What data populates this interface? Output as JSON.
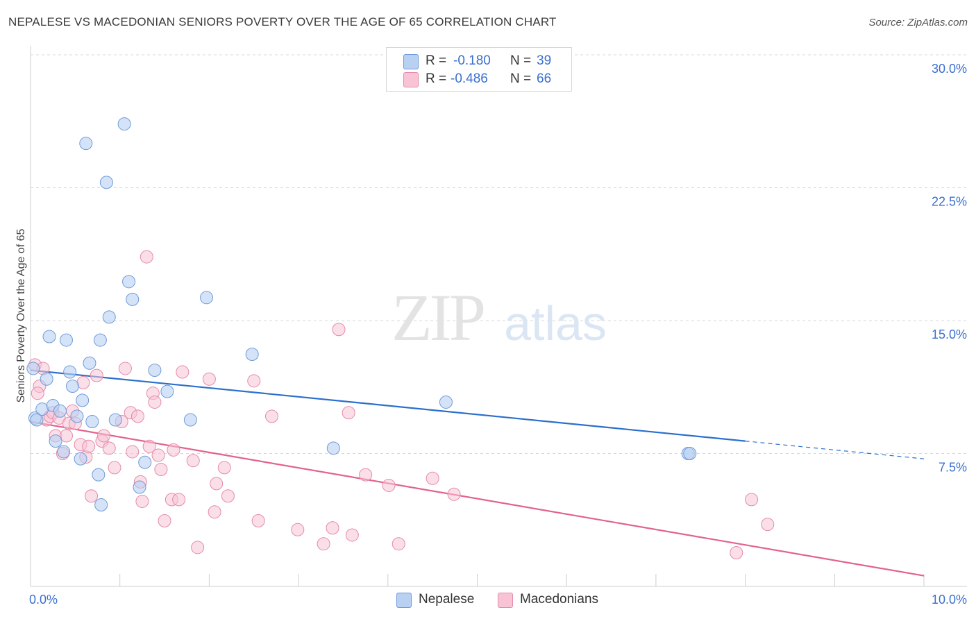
{
  "header": {
    "title": "NEPALESE VS MACEDONIAN SENIORS POVERTY OVER THE AGE OF 65 CORRELATION CHART",
    "source": "Source: ZipAtlas.com"
  },
  "watermark": {
    "zip": "ZIP",
    "atlas": "atlas"
  },
  "legend_top": [
    {
      "r_label": "R =",
      "r_value": "-0.180",
      "n_label": "N =",
      "n_value": "39"
    },
    {
      "r_label": "R =",
      "r_value": "-0.486",
      "n_label": "N =",
      "n_value": "66"
    }
  ],
  "legend_bottom": [
    {
      "label": "Nepalese"
    },
    {
      "label": "Macedonians"
    }
  ],
  "colors": {
    "nepalese_fill": "#b8d0f2",
    "nepalese_stroke": "#6f9ad8",
    "nepalese_line": "#2a6fcc",
    "macedonian_fill": "#f8c4d5",
    "macedonian_stroke": "#e58aa8",
    "macedonian_line": "#e2628e",
    "tick_label": "#3b6fcf",
    "grid": "#d9d9d9"
  },
  "chart_data": {
    "type": "scatter",
    "title": "NEPALESE VS MACEDONIAN SENIORS POVERTY OVER THE AGE OF 65 CORRELATION CHART",
    "xlabel": "",
    "ylabel": "Seniors Poverty Over the Age of 65",
    "xlim": [
      0,
      10
    ],
    "ylim": [
      0,
      30
    ],
    "x_tick_labels": [
      "0.0%",
      "10.0%"
    ],
    "y_ticks": [
      7.5,
      15.0,
      22.5,
      30.0
    ],
    "y_tick_labels": [
      "7.5%",
      "15.0%",
      "22.5%",
      "30.0%"
    ],
    "grid": true,
    "legend_position": "top-center and bottom",
    "series": [
      {
        "name": "Nepalese",
        "r": -0.18,
        "n": 39,
        "trend": {
          "x": [
            0.0,
            8.0
          ],
          "y": [
            12.2,
            8.2
          ],
          "dashed_extension": {
            "x": [
              8.0,
              10.0
            ],
            "y": [
              8.2,
              7.2
            ]
          }
        },
        "points": [
          [
            0.03,
            12.3
          ],
          [
            0.05,
            9.5
          ],
          [
            0.07,
            9.4
          ],
          [
            0.13,
            10.0
          ],
          [
            0.18,
            11.7
          ],
          [
            0.21,
            14.1
          ],
          [
            0.25,
            10.2
          ],
          [
            0.28,
            8.2
          ],
          [
            0.33,
            9.9
          ],
          [
            0.37,
            7.6
          ],
          [
            0.4,
            13.9
          ],
          [
            0.44,
            12.1
          ],
          [
            0.47,
            11.3
          ],
          [
            0.52,
            9.6
          ],
          [
            0.56,
            7.2
          ],
          [
            0.58,
            10.5
          ],
          [
            0.62,
            25.0
          ],
          [
            0.66,
            12.6
          ],
          [
            0.69,
            9.3
          ],
          [
            0.76,
            6.3
          ],
          [
            0.78,
            13.9
          ],
          [
            0.79,
            4.6
          ],
          [
            0.85,
            22.8
          ],
          [
            0.88,
            15.2
          ],
          [
            0.95,
            9.4
          ],
          [
            1.05,
            26.1
          ],
          [
            1.1,
            17.2
          ],
          [
            1.14,
            16.2
          ],
          [
            1.22,
            5.6
          ],
          [
            1.28,
            7.0
          ],
          [
            1.39,
            12.2
          ],
          [
            1.53,
            11.0
          ],
          [
            1.79,
            9.4
          ],
          [
            1.97,
            16.3
          ],
          [
            2.48,
            13.1
          ],
          [
            3.39,
            7.8
          ],
          [
            4.65,
            10.4
          ],
          [
            7.36,
            7.5
          ],
          [
            7.38,
            7.5
          ]
        ]
      },
      {
        "name": "Macedonians",
        "r": -0.486,
        "n": 66,
        "trend": {
          "x": [
            0.0,
            10.0
          ],
          "y": [
            9.3,
            0.6
          ]
        },
        "points": [
          [
            0.05,
            12.5
          ],
          [
            0.1,
            11.3
          ],
          [
            0.14,
            12.3
          ],
          [
            0.18,
            9.4
          ],
          [
            0.22,
            9.6
          ],
          [
            0.25,
            9.8
          ],
          [
            0.28,
            8.5
          ],
          [
            0.32,
            9.5
          ],
          [
            0.36,
            7.5
          ],
          [
            0.4,
            8.5
          ],
          [
            0.43,
            9.2
          ],
          [
            0.47,
            9.9
          ],
          [
            0.5,
            9.2
          ],
          [
            0.56,
            8.0
          ],
          [
            0.59,
            11.5
          ],
          [
            0.62,
            7.3
          ],
          [
            0.65,
            7.9
          ],
          [
            0.68,
            5.1
          ],
          [
            0.74,
            11.9
          ],
          [
            0.8,
            8.2
          ],
          [
            0.82,
            8.5
          ],
          [
            0.88,
            7.8
          ],
          [
            0.94,
            6.7
          ],
          [
            1.02,
            9.3
          ],
          [
            1.06,
            12.3
          ],
          [
            1.12,
            9.8
          ],
          [
            1.14,
            7.6
          ],
          [
            1.2,
            9.6
          ],
          [
            1.23,
            5.9
          ],
          [
            1.25,
            4.8
          ],
          [
            1.3,
            18.6
          ],
          [
            1.33,
            7.9
          ],
          [
            1.37,
            10.9
          ],
          [
            1.39,
            10.4
          ],
          [
            1.43,
            7.4
          ],
          [
            1.46,
            6.6
          ],
          [
            1.5,
            3.7
          ],
          [
            1.58,
            4.9
          ],
          [
            1.6,
            7.7
          ],
          [
            1.66,
            4.9
          ],
          [
            1.7,
            12.1
          ],
          [
            1.82,
            7.1
          ],
          [
            1.87,
            2.2
          ],
          [
            2.0,
            11.7
          ],
          [
            2.06,
            4.2
          ],
          [
            2.08,
            5.8
          ],
          [
            2.17,
            6.7
          ],
          [
            2.21,
            5.1
          ],
          [
            2.5,
            11.6
          ],
          [
            2.55,
            3.7
          ],
          [
            2.7,
            9.6
          ],
          [
            2.99,
            3.2
          ],
          [
            3.28,
            2.4
          ],
          [
            3.38,
            3.3
          ],
          [
            3.45,
            14.5
          ],
          [
            3.56,
            9.8
          ],
          [
            3.6,
            2.9
          ],
          [
            3.75,
            6.3
          ],
          [
            4.01,
            5.7
          ],
          [
            4.12,
            2.4
          ],
          [
            4.5,
            6.1
          ],
          [
            4.74,
            5.2
          ],
          [
            7.9,
            1.9
          ],
          [
            8.07,
            4.9
          ],
          [
            8.25,
            3.5
          ],
          [
            0.08,
            10.9
          ]
        ]
      }
    ]
  }
}
